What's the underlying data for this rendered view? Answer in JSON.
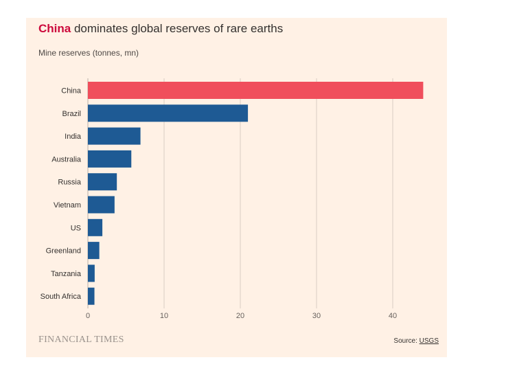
{
  "title": {
    "highlight": "China",
    "rest": " dominates global reserves of rare earths"
  },
  "subtitle": "Mine reserves (tonnes, mn)",
  "footer": {
    "brand": "FINANCIAL TIMES",
    "source_label": "Source: ",
    "source_link": "USGS"
  },
  "colors": {
    "highlight": "#f04e5c",
    "default": "#1e5a94",
    "title_accent": "#cc0a3c",
    "background": "#fff1e5"
  },
  "chart_data": {
    "type": "bar",
    "orientation": "horizontal",
    "title": "China dominates global reserves of rare earths",
    "subtitle": "Mine reserves (tonnes, mn)",
    "xlabel": "",
    "ylabel": "",
    "categories": [
      "China",
      "Brazil",
      "India",
      "Australia",
      "Russia",
      "Vietnam",
      "US",
      "Greenland",
      "Tanzania",
      "South Africa"
    ],
    "values": [
      44,
      21,
      6.9,
      5.7,
      3.8,
      3.5,
      1.9,
      1.5,
      0.89,
      0.86
    ],
    "highlight_category": "China",
    "xlim": [
      0,
      45
    ],
    "xticks": [
      0,
      10,
      20,
      30,
      40
    ],
    "grid": true
  }
}
